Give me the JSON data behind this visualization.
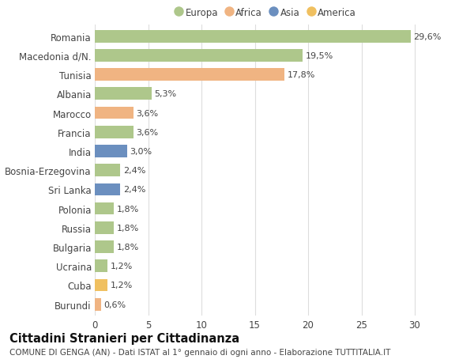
{
  "categories": [
    "Romania",
    "Macedonia d/N.",
    "Tunisia",
    "Albania",
    "Marocco",
    "Francia",
    "India",
    "Bosnia-Erzegovina",
    "Sri Lanka",
    "Polonia",
    "Russia",
    "Bulgaria",
    "Ucraina",
    "Cuba",
    "Burundi"
  ],
  "values": [
    29.6,
    19.5,
    17.8,
    5.3,
    3.6,
    3.6,
    3.0,
    2.4,
    2.4,
    1.8,
    1.8,
    1.8,
    1.2,
    1.2,
    0.6
  ],
  "labels": [
    "29,6%",
    "19,5%",
    "17,8%",
    "5,3%",
    "3,6%",
    "3,6%",
    "3,0%",
    "2,4%",
    "2,4%",
    "1,8%",
    "1,8%",
    "1,8%",
    "1,2%",
    "1,2%",
    "0,6%"
  ],
  "colors": [
    "#aec78b",
    "#aec78b",
    "#f0b482",
    "#aec78b",
    "#f0b482",
    "#aec78b",
    "#6b8fbf",
    "#aec78b",
    "#6b8fbf",
    "#aec78b",
    "#aec78b",
    "#aec78b",
    "#aec78b",
    "#f0c060",
    "#f0b482"
  ],
  "legend_labels": [
    "Europa",
    "Africa",
    "Asia",
    "America"
  ],
  "legend_colors": [
    "#aec78b",
    "#f0b482",
    "#6b8fbf",
    "#f0c060"
  ],
  "title": "Cittadini Stranieri per Cittadinanza",
  "subtitle": "COMUNE DI GENGA (AN) - Dati ISTAT al 1° gennaio di ogni anno - Elaborazione TUTTITALIA.IT",
  "xlim": [
    0,
    32
  ],
  "xticks": [
    0,
    5,
    10,
    15,
    20,
    25,
    30
  ],
  "background_color": "#ffffff",
  "grid_color": "#dddddd",
  "bar_height": 0.65,
  "title_fontsize": 10.5,
  "subtitle_fontsize": 7.5,
  "tick_fontsize": 8.5,
  "label_fontsize": 8.0
}
